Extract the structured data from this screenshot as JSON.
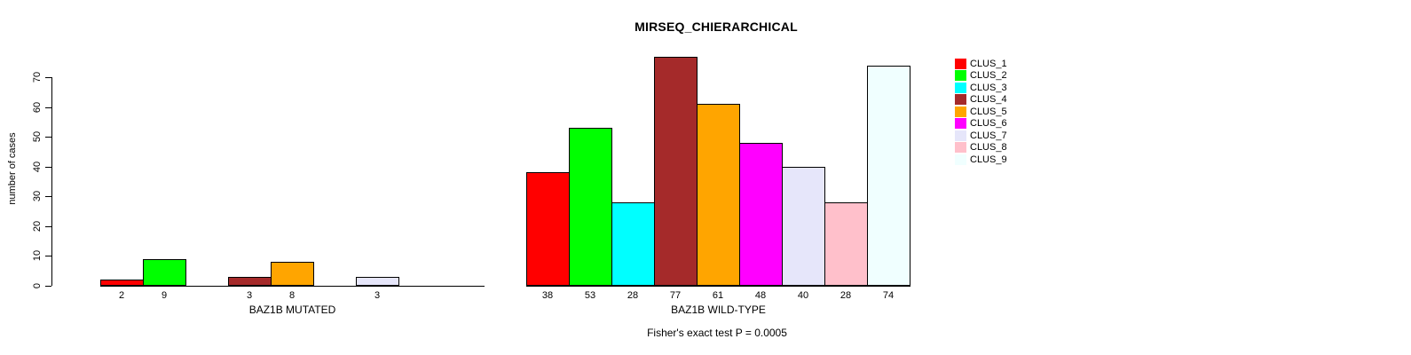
{
  "chart_data": {
    "type": "bar",
    "title": "MIRSEQ_CHIERARCHICAL",
    "ylabel": "number of cases",
    "ylim": [
      0,
      77
    ],
    "yticks": [
      0,
      10,
      20,
      30,
      40,
      50,
      60,
      70
    ],
    "grid": false,
    "categories": [
      "CLUS_1",
      "CLUS_2",
      "CLUS_3",
      "CLUS_4",
      "CLUS_5",
      "CLUS_6",
      "CLUS_7",
      "CLUS_8",
      "CLUS_9"
    ],
    "colors": [
      "#ff0000",
      "#00ff00",
      "#00ffff",
      "#a52a2a",
      "#ffa500",
      "#ff00ff",
      "#e6e6fa",
      "#ffc0cb",
      "#f0ffff"
    ],
    "groups": [
      {
        "label": "BAZ1B MUTATED",
        "values": [
          2,
          9,
          0,
          3,
          8,
          0,
          3,
          0,
          0
        ],
        "bar_labels": [
          "2",
          "9",
          "",
          "3",
          "8",
          "",
          "3",
          "",
          ""
        ]
      },
      {
        "label": "BAZ1B WILD-TYPE",
        "values": [
          38,
          53,
          28,
          77,
          61,
          48,
          40,
          28,
          74
        ],
        "bar_labels": [
          "38",
          "53",
          "28",
          "77",
          "61",
          "48",
          "40",
          "28",
          "74"
        ]
      }
    ],
    "legend": {
      "position": "right",
      "entries": [
        "CLUS_1",
        "CLUS_2",
        "CLUS_3",
        "CLUS_4",
        "CLUS_5",
        "CLUS_6",
        "CLUS_7",
        "CLUS_8",
        "CLUS_9"
      ]
    },
    "annotation": "Fisher's exact test P = 0.0005"
  }
}
